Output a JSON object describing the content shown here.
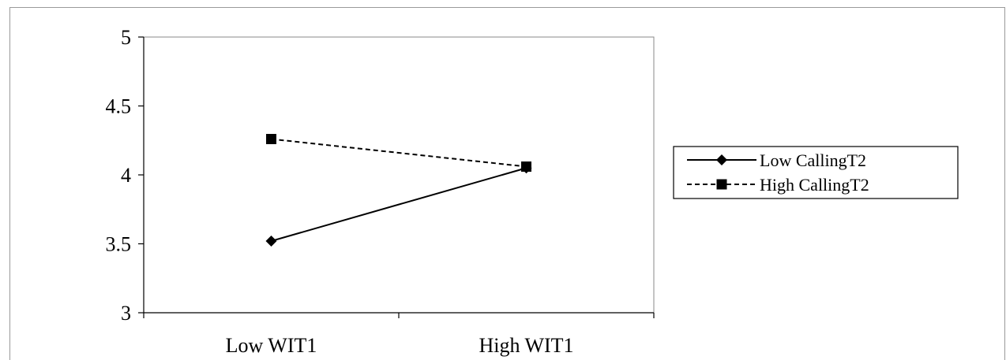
{
  "chart_data": {
    "type": "line",
    "title": "",
    "xlabel": "",
    "ylabel": "",
    "categories": [
      "Low WIT1",
      "High WIT1"
    ],
    "ylim": [
      3,
      5
    ],
    "yticks": [
      3,
      3.5,
      4,
      4.5,
      5
    ],
    "ytick_labels": [
      "3",
      "3.5",
      "4",
      "4.5",
      "5"
    ],
    "grid": false,
    "legend_position": "right",
    "series": [
      {
        "name": "Low CallingT2",
        "values": [
          3.52,
          4.05
        ],
        "line_style": "solid",
        "marker": "diamond",
        "color": "#000000"
      },
      {
        "name": "High CallingT2",
        "values": [
          4.26,
          4.06
        ],
        "line_style": "dashed",
        "marker": "square",
        "color": "#000000"
      }
    ]
  }
}
